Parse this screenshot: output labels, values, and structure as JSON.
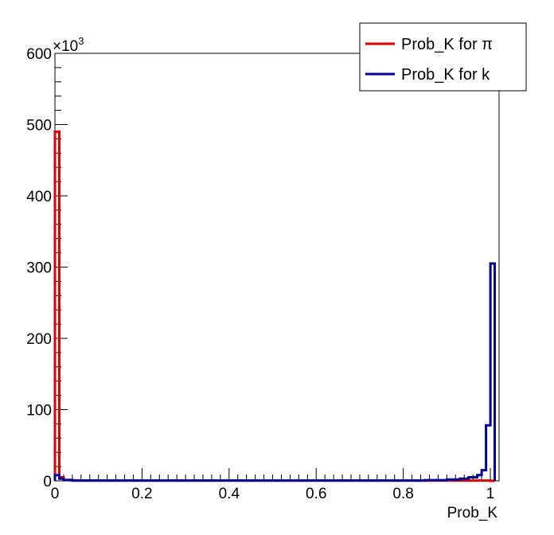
{
  "chart_data": {
    "type": "histogram",
    "xlabel": "Prob_K",
    "ylabel": "",
    "y_multiplier_label": "×10",
    "y_multiplier_exp": "3",
    "xlim": [
      0,
      1.02
    ],
    "ylim": [
      0,
      600
    ],
    "x_ticks": [
      0,
      0.2,
      0.4,
      0.6,
      0.8,
      1
    ],
    "x_tick_labels": [
      "0",
      "0.2",
      "0.4",
      "0.6",
      "0.8",
      "1"
    ],
    "y_ticks": [
      0,
      100,
      200,
      300,
      400,
      500,
      600
    ],
    "y_tick_labels": [
      "0",
      "100",
      "200",
      "300",
      "400",
      "500",
      "600"
    ],
    "legend_position": "top-right",
    "grid": false,
    "series": [
      {
        "name": "Prob_K for π",
        "color": "#e00000",
        "bins": [
          [
            0,
            0.01,
            490
          ],
          [
            0.01,
            0.02,
            5
          ],
          [
            0.02,
            0.04,
            1.5
          ],
          [
            0.04,
            0.99,
            0.5
          ],
          [
            0.99,
            1.0,
            0.5
          ],
          [
            1.0,
            1.01,
            0
          ]
        ]
      },
      {
        "name": "Prob_K for k",
        "color": "#000099",
        "bins": [
          [
            0,
            0.01,
            8
          ],
          [
            0.01,
            0.02,
            3
          ],
          [
            0.02,
            0.04,
            1
          ],
          [
            0.04,
            0.85,
            0.5
          ],
          [
            0.85,
            0.9,
            1
          ],
          [
            0.9,
            0.93,
            2
          ],
          [
            0.93,
            0.95,
            3
          ],
          [
            0.95,
            0.97,
            5
          ],
          [
            0.97,
            0.98,
            8
          ],
          [
            0.98,
            0.99,
            15
          ],
          [
            0.99,
            1.0,
            78
          ],
          [
            1.0,
            1.01,
            305
          ]
        ]
      }
    ]
  }
}
